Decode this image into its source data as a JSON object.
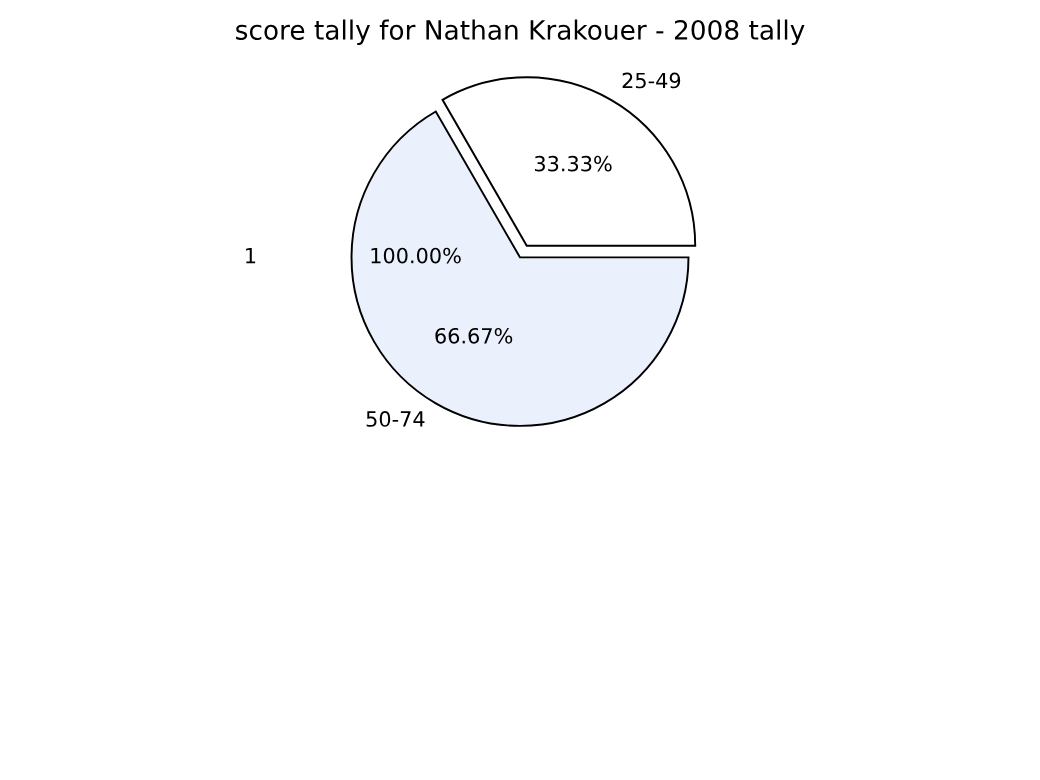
{
  "chart_data": {
    "type": "pie",
    "title": "score tally for Nathan Krakouer - 2008 tally",
    "categories": [
      "25-49",
      "50-74"
    ],
    "values": [
      33.33,
      66.67
    ],
    "value_labels": [
      "33.33%",
      "66.67%"
    ],
    "colors": [
      "#ffffff",
      "#eaf0fc"
    ],
    "annotations": [
      "1",
      "100.00%"
    ],
    "legend": false
  }
}
